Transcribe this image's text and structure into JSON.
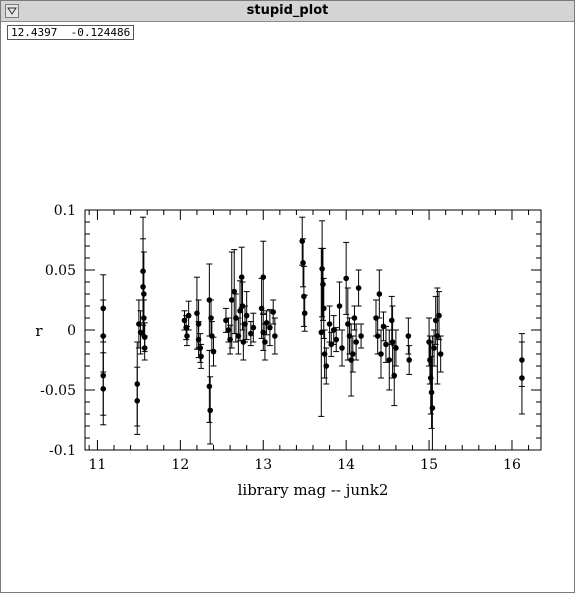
{
  "window": {
    "title": "stupid_plot",
    "menu_icon": "triangle-down-icon",
    "coord_x": "12.4397",
    "coord_y": "-0.124486"
  },
  "chart_data": {
    "type": "scatter",
    "title": "",
    "xlabel": "library mag --   junk2",
    "ylabel": "r",
    "xlim": [
      10.85,
      16.35
    ],
    "ylim": [
      -0.1,
      0.1
    ],
    "x_ticks": [
      "11",
      "12",
      "13",
      "14",
      "15",
      "16"
    ],
    "y_ticks": [
      "-0.1",
      "-0.05",
      "0",
      "0.05",
      "0.1"
    ],
    "grid": false,
    "error_bars": true,
    "series": [
      {
        "points": [
          {
            "x": 11.07,
            "y": 0.018,
            "err": 0.028
          },
          {
            "x": 11.07,
            "y": -0.005,
            "err": 0.03
          },
          {
            "x": 11.07,
            "y": -0.038,
            "err": 0.033
          },
          {
            "x": 11.07,
            "y": -0.049,
            "err": 0.03
          },
          {
            "x": 11.48,
            "y": -0.045,
            "err": 0.035
          },
          {
            "x": 11.48,
            "y": -0.059,
            "err": 0.028
          },
          {
            "x": 11.5,
            "y": 0.005,
            "err": 0.02
          },
          {
            "x": 11.52,
            "y": -0.002,
            "err": 0.018
          },
          {
            "x": 11.55,
            "y": 0.049,
            "err": 0.045
          },
          {
            "x": 11.55,
            "y": 0.036,
            "err": 0.04
          },
          {
            "x": 11.56,
            "y": 0.03,
            "err": 0.035
          },
          {
            "x": 11.56,
            "y": 0.01,
            "err": 0.015
          },
          {
            "x": 11.57,
            "y": -0.006,
            "err": 0.012
          },
          {
            "x": 11.57,
            "y": -0.015,
            "err": 0.01
          },
          {
            "x": 12.05,
            "y": 0.008,
            "err": 0.008
          },
          {
            "x": 12.07,
            "y": 0.002,
            "err": 0.01
          },
          {
            "x": 12.08,
            "y": -0.005,
            "err": 0.008
          },
          {
            "x": 12.1,
            "y": 0.012,
            "err": 0.012
          },
          {
            "x": 12.2,
            "y": 0.014,
            "err": 0.03
          },
          {
            "x": 12.22,
            "y": 0.005,
            "err": 0.02
          },
          {
            "x": 12.22,
            "y": -0.008,
            "err": 0.015
          },
          {
            "x": 12.24,
            "y": -0.015,
            "err": 0.012
          },
          {
            "x": 12.25,
            "y": -0.022,
            "err": 0.01
          },
          {
            "x": 12.35,
            "y": 0.025,
            "err": 0.03
          },
          {
            "x": 12.35,
            "y": -0.047,
            "err": 0.03
          },
          {
            "x": 12.36,
            "y": -0.067,
            "err": 0.028
          },
          {
            "x": 12.37,
            "y": 0.01,
            "err": 0.015
          },
          {
            "x": 12.38,
            "y": -0.005,
            "err": 0.012
          },
          {
            "x": 12.4,
            "y": -0.018,
            "err": 0.012
          },
          {
            "x": 12.55,
            "y": 0.008,
            "err": 0.01
          },
          {
            "x": 12.58,
            "y": 0.0,
            "err": 0.01
          },
          {
            "x": 12.6,
            "y": -0.008,
            "err": 0.012
          },
          {
            "x": 12.62,
            "y": 0.025,
            "err": 0.04
          },
          {
            "x": 12.65,
            "y": 0.032,
            "err": 0.035
          },
          {
            "x": 12.67,
            "y": 0.01,
            "err": 0.02
          },
          {
            "x": 12.7,
            "y": -0.005,
            "err": 0.015
          },
          {
            "x": 12.72,
            "y": 0.016,
            "err": 0.025
          },
          {
            "x": 12.74,
            "y": 0.044,
            "err": 0.025
          },
          {
            "x": 12.75,
            "y": 0.02,
            "err": 0.02
          },
          {
            "x": 12.76,
            "y": -0.01,
            "err": 0.015
          },
          {
            "x": 12.78,
            "y": 0.005,
            "err": 0.015
          },
          {
            "x": 12.8,
            "y": 0.012,
            "err": 0.02
          },
          {
            "x": 12.85,
            "y": -0.003,
            "err": 0.01
          },
          {
            "x": 12.88,
            "y": 0.002,
            "err": 0.012
          },
          {
            "x": 12.98,
            "y": 0.018,
            "err": 0.025
          },
          {
            "x": 13.0,
            "y": 0.044,
            "err": 0.03
          },
          {
            "x": 13.0,
            "y": -0.002,
            "err": 0.015
          },
          {
            "x": 13.02,
            "y": -0.01,
            "err": 0.015
          },
          {
            "x": 13.04,
            "y": 0.006,
            "err": 0.01
          },
          {
            "x": 13.08,
            "y": 0.002,
            "err": 0.015
          },
          {
            "x": 13.12,
            "y": 0.015,
            "err": 0.01
          },
          {
            "x": 13.14,
            "y": -0.005,
            "err": 0.015
          },
          {
            "x": 13.47,
            "y": 0.074,
            "err": 0.02
          },
          {
            "x": 13.48,
            "y": 0.056,
            "err": 0.02
          },
          {
            "x": 13.49,
            "y": 0.028,
            "err": 0.025
          },
          {
            "x": 13.5,
            "y": 0.014,
            "err": 0.015
          },
          {
            "x": 13.7,
            "y": -0.002,
            "err": 0.07
          },
          {
            "x": 13.71,
            "y": 0.051,
            "err": 0.04
          },
          {
            "x": 13.72,
            "y": 0.038,
            "err": 0.03
          },
          {
            "x": 13.73,
            "y": 0.018,
            "err": 0.025
          },
          {
            "x": 13.74,
            "y": -0.02,
            "err": 0.02
          },
          {
            "x": 13.76,
            "y": -0.03,
            "err": 0.015
          },
          {
            "x": 13.8,
            "y": 0.005,
            "err": 0.015
          },
          {
            "x": 13.82,
            "y": -0.012,
            "err": 0.01
          },
          {
            "x": 13.85,
            "y": 0.0,
            "err": 0.012
          },
          {
            "x": 13.88,
            "y": -0.008,
            "err": 0.01
          },
          {
            "x": 13.92,
            "y": 0.02,
            "err": 0.02
          },
          {
            "x": 13.95,
            "y": -0.015,
            "err": 0.015
          },
          {
            "x": 14.0,
            "y": 0.043,
            "err": 0.03
          },
          {
            "x": 14.02,
            "y": 0.005,
            "err": 0.03
          },
          {
            "x": 14.04,
            "y": -0.005,
            "err": 0.015
          },
          {
            "x": 14.06,
            "y": -0.025,
            "err": 0.03
          },
          {
            "x": 14.08,
            "y": -0.02,
            "err": 0.015
          },
          {
            "x": 14.1,
            "y": 0.01,
            "err": 0.01
          },
          {
            "x": 14.12,
            "y": -0.01,
            "err": 0.015
          },
          {
            "x": 14.15,
            "y": 0.035,
            "err": 0.015
          },
          {
            "x": 14.18,
            "y": -0.005,
            "err": 0.01
          },
          {
            "x": 14.36,
            "y": 0.01,
            "err": 0.015
          },
          {
            "x": 14.38,
            "y": -0.005,
            "err": 0.015
          },
          {
            "x": 14.4,
            "y": 0.03,
            "err": 0.02
          },
          {
            "x": 14.42,
            "y": -0.02,
            "err": 0.02
          },
          {
            "x": 14.45,
            "y": 0.003,
            "err": 0.012
          },
          {
            "x": 14.48,
            "y": -0.012,
            "err": 0.015
          },
          {
            "x": 14.52,
            "y": -0.025,
            "err": 0.025
          },
          {
            "x": 14.55,
            "y": 0.008,
            "err": 0.02
          },
          {
            "x": 14.56,
            "y": -0.01,
            "err": 0.03
          },
          {
            "x": 14.58,
            "y": -0.038,
            "err": 0.025
          },
          {
            "x": 14.6,
            "y": -0.015,
            "err": 0.015
          },
          {
            "x": 14.75,
            "y": -0.005,
            "err": 0.015
          },
          {
            "x": 14.76,
            "y": -0.025,
            "err": 0.012
          },
          {
            "x": 15.0,
            "y": -0.01,
            "err": 0.02
          },
          {
            "x": 15.01,
            "y": -0.025,
            "err": 0.02
          },
          {
            "x": 15.02,
            "y": -0.04,
            "err": 0.03
          },
          {
            "x": 15.03,
            "y": -0.052,
            "err": 0.03
          },
          {
            "x": 15.04,
            "y": -0.065,
            "err": 0.06
          },
          {
            "x": 15.06,
            "y": -0.015,
            "err": 0.015
          },
          {
            "x": 15.08,
            "y": 0.008,
            "err": 0.02
          },
          {
            "x": 15.1,
            "y": -0.005,
            "err": 0.04
          },
          {
            "x": 15.12,
            "y": 0.012,
            "err": 0.02
          },
          {
            "x": 15.14,
            "y": -0.02,
            "err": 0.015
          },
          {
            "x": 16.12,
            "y": -0.025,
            "err": 0.022
          },
          {
            "x": 16.12,
            "y": -0.04,
            "err": 0.03
          }
        ]
      }
    ]
  }
}
